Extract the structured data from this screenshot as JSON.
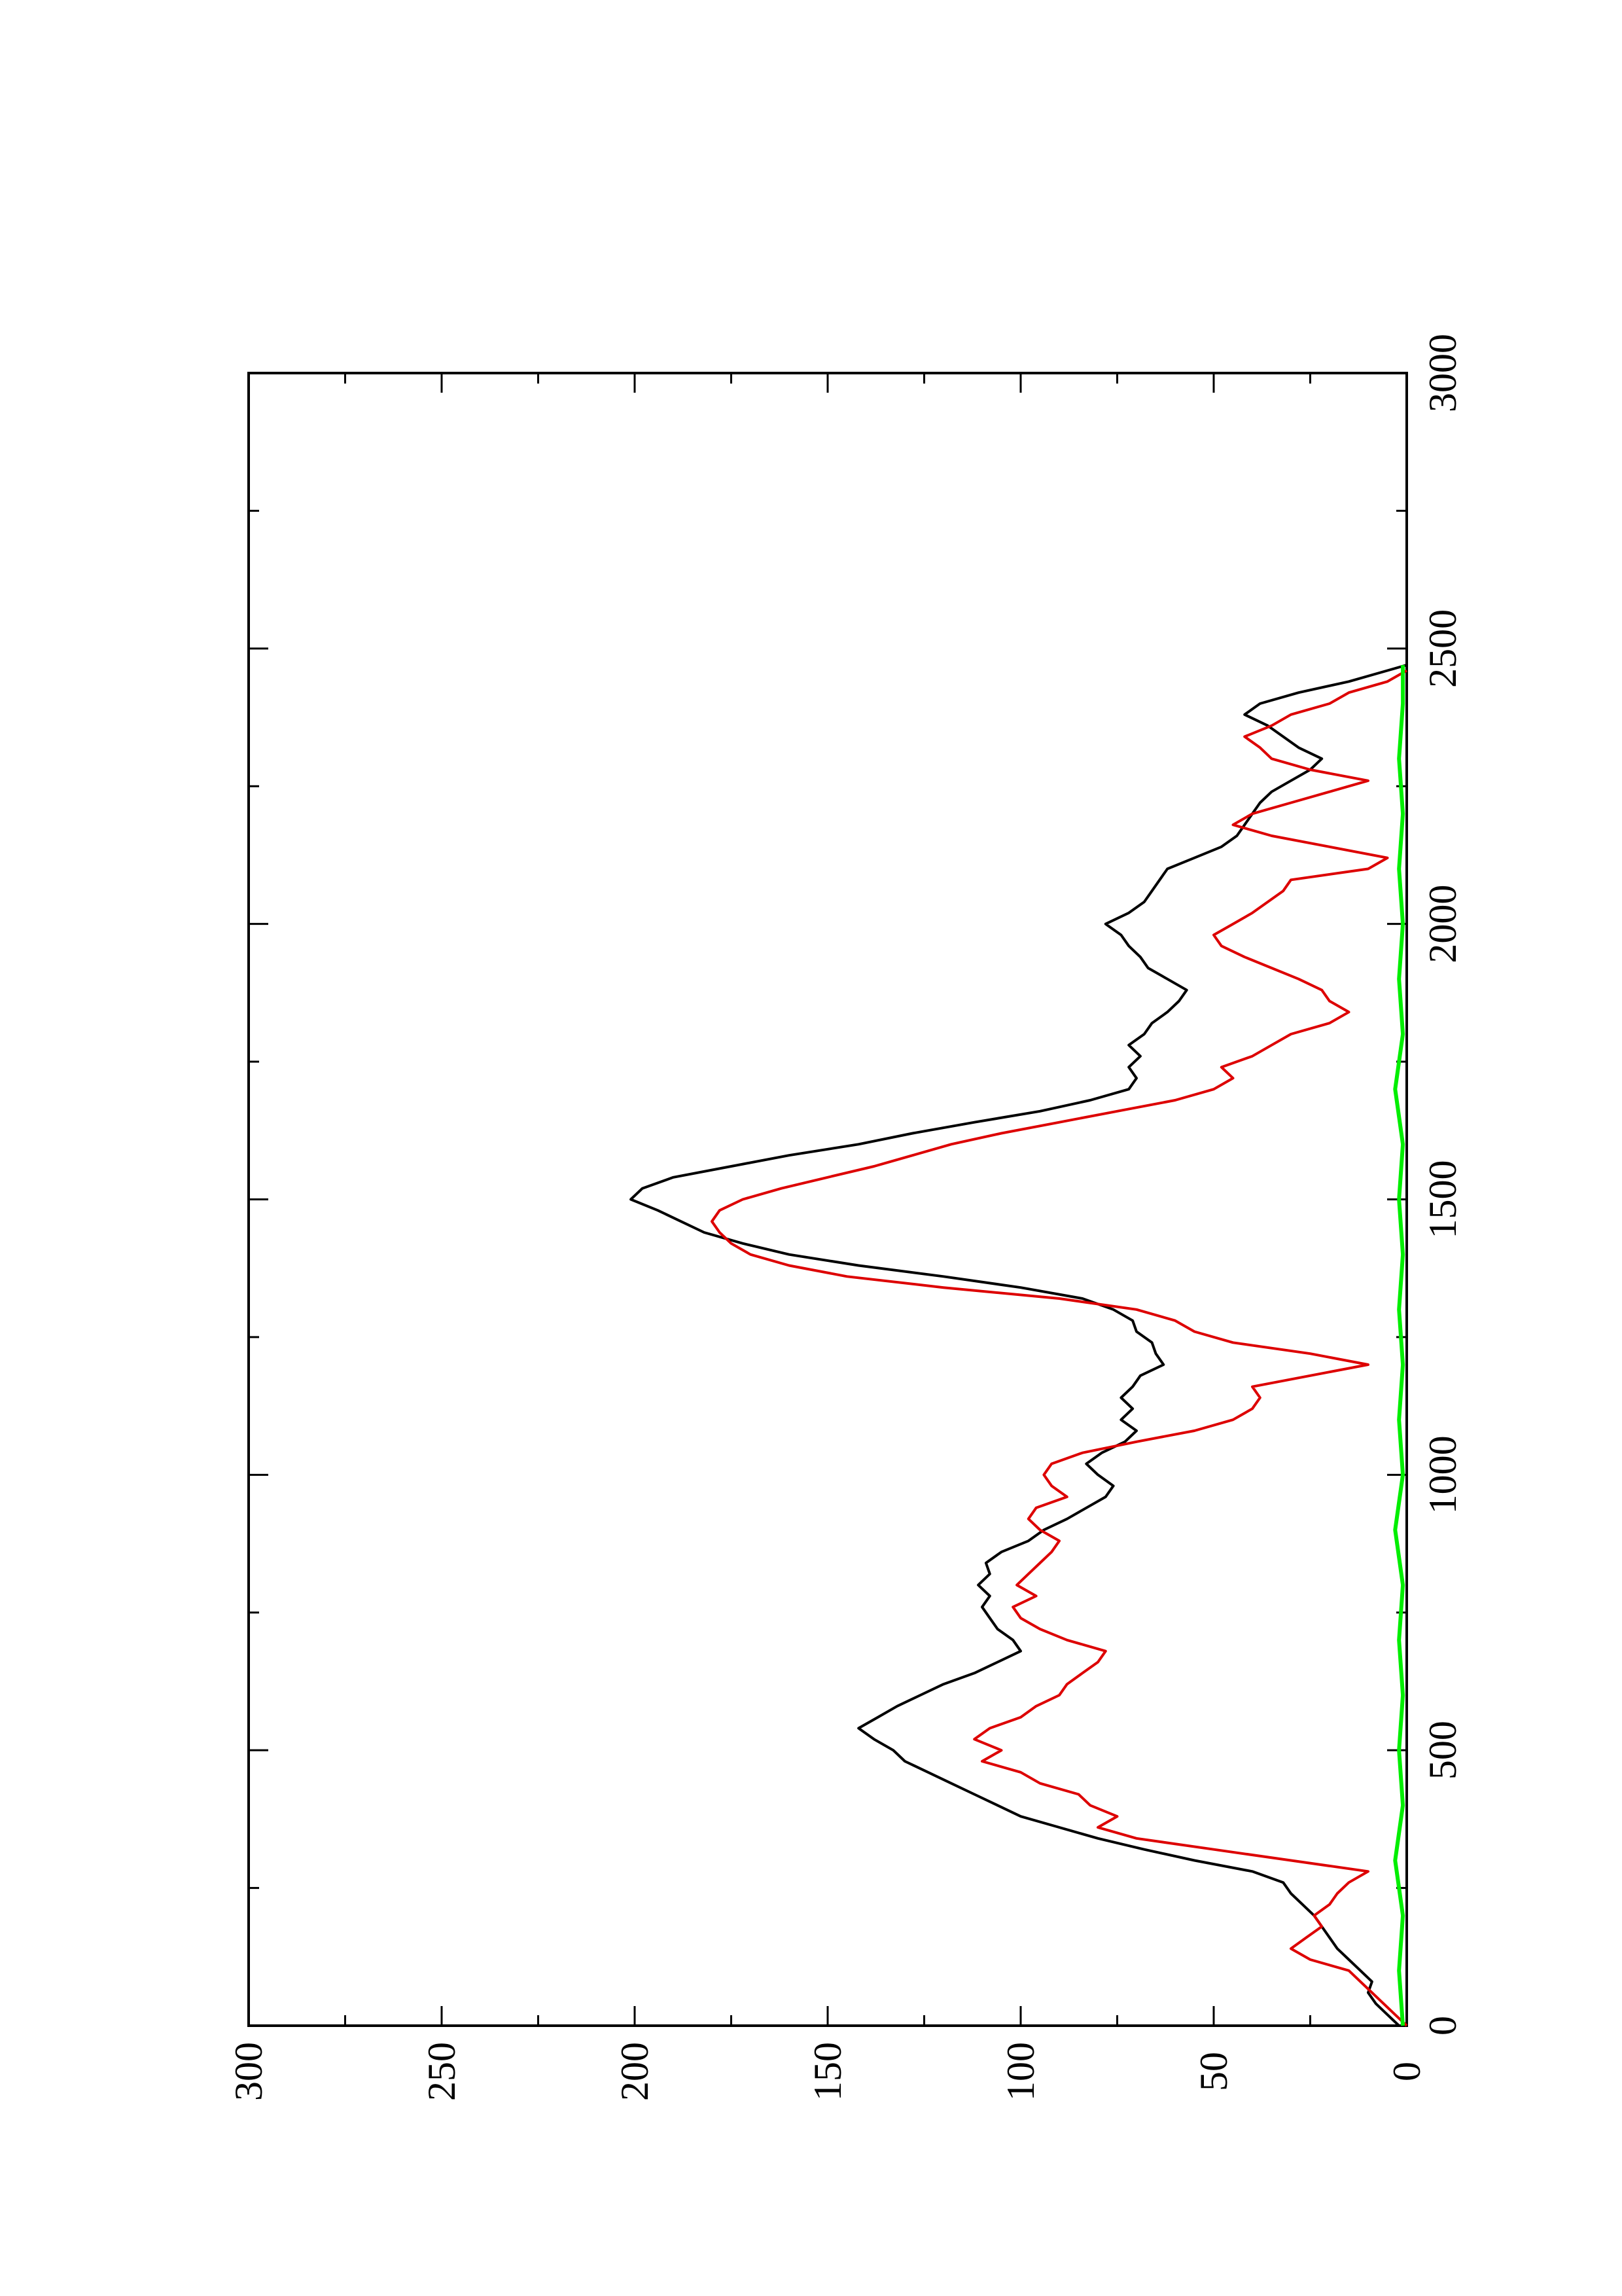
{
  "chart_data": {
    "type": "line",
    "title": "",
    "xlabel": "",
    "ylabel": "",
    "orientation": "rotated 90 degrees counter-clockwise",
    "xlim": [
      0,
      3000
    ],
    "ylim": [
      0,
      300
    ],
    "x_ticks": [
      0,
      500,
      1000,
      1500,
      2000,
      2500,
      3000
    ],
    "x_tick_labels": [
      "0",
      "500",
      "1000",
      "1500",
      "2000",
      "2500",
      "3000"
    ],
    "y_ticks": [
      0,
      50,
      100,
      150,
      200,
      250,
      300
    ],
    "y_tick_labels": [
      "0",
      "50",
      "100",
      "150",
      "200",
      "250",
      "300"
    ],
    "grid": false,
    "legend": "none",
    "series": [
      {
        "color": "#000000",
        "points": [
          [
            0,
            2
          ],
          [
            20,
            5
          ],
          [
            40,
            8
          ],
          [
            60,
            10
          ],
          [
            80,
            9
          ],
          [
            100,
            12
          ],
          [
            120,
            15
          ],
          [
            140,
            18
          ],
          [
            160,
            20
          ],
          [
            180,
            22
          ],
          [
            200,
            24
          ],
          [
            220,
            27
          ],
          [
            240,
            30
          ],
          [
            260,
            32
          ],
          [
            280,
            40
          ],
          [
            300,
            55
          ],
          [
            320,
            68
          ],
          [
            340,
            80
          ],
          [
            360,
            90
          ],
          [
            380,
            100
          ],
          [
            400,
            106
          ],
          [
            420,
            112
          ],
          [
            440,
            118
          ],
          [
            460,
            124
          ],
          [
            480,
            130
          ],
          [
            500,
            133
          ],
          [
            520,
            138
          ],
          [
            540,
            142
          ],
          [
            560,
            137
          ],
          [
            580,
            132
          ],
          [
            600,
            126
          ],
          [
            620,
            120
          ],
          [
            640,
            112
          ],
          [
            660,
            106
          ],
          [
            680,
            100
          ],
          [
            700,
            102
          ],
          [
            720,
            106
          ],
          [
            740,
            108
          ],
          [
            760,
            110
          ],
          [
            780,
            108
          ],
          [
            800,
            111
          ],
          [
            820,
            108
          ],
          [
            840,
            109
          ],
          [
            860,
            105
          ],
          [
            880,
            98
          ],
          [
            900,
            94
          ],
          [
            920,
            88
          ],
          [
            940,
            83
          ],
          [
            960,
            78
          ],
          [
            980,
            76
          ],
          [
            1000,
            80
          ],
          [
            1020,
            83
          ],
          [
            1040,
            79
          ],
          [
            1060,
            73
          ],
          [
            1080,
            70
          ],
          [
            1100,
            74
          ],
          [
            1120,
            71
          ],
          [
            1140,
            74
          ],
          [
            1160,
            71
          ],
          [
            1180,
            69
          ],
          [
            1200,
            63
          ],
          [
            1220,
            65
          ],
          [
            1240,
            66
          ],
          [
            1260,
            70
          ],
          [
            1280,
            71
          ],
          [
            1300,
            76
          ],
          [
            1320,
            84
          ],
          [
            1340,
            100
          ],
          [
            1360,
            120
          ],
          [
            1380,
            142
          ],
          [
            1400,
            160
          ],
          [
            1420,
            172
          ],
          [
            1440,
            182
          ],
          [
            1460,
            188
          ],
          [
            1480,
            194
          ],
          [
            1500,
            201
          ],
          [
            1520,
            198
          ],
          [
            1540,
            190
          ],
          [
            1560,
            175
          ],
          [
            1580,
            160
          ],
          [
            1600,
            142
          ],
          [
            1620,
            128
          ],
          [
            1640,
            112
          ],
          [
            1660,
            95
          ],
          [
            1680,
            82
          ],
          [
            1700,
            72
          ],
          [
            1720,
            70
          ],
          [
            1740,
            72
          ],
          [
            1760,
            69
          ],
          [
            1780,
            72
          ],
          [
            1800,
            68
          ],
          [
            1820,
            66
          ],
          [
            1840,
            62
          ],
          [
            1860,
            59
          ],
          [
            1880,
            57
          ],
          [
            1900,
            62
          ],
          [
            1920,
            67
          ],
          [
            1940,
            69
          ],
          [
            1960,
            72
          ],
          [
            1980,
            74
          ],
          [
            2000,
            78
          ],
          [
            2020,
            72
          ],
          [
            2040,
            68
          ],
          [
            2060,
            66
          ],
          [
            2080,
            64
          ],
          [
            2100,
            62
          ],
          [
            2120,
            55
          ],
          [
            2140,
            48
          ],
          [
            2160,
            44
          ],
          [
            2180,
            42
          ],
          [
            2200,
            40
          ],
          [
            2220,
            38
          ],
          [
            2240,
            35
          ],
          [
            2260,
            30
          ],
          [
            2280,
            25
          ],
          [
            2300,
            22
          ],
          [
            2320,
            28
          ],
          [
            2340,
            32
          ],
          [
            2360,
            36
          ],
          [
            2380,
            42
          ],
          [
            2400,
            38
          ],
          [
            2420,
            28
          ],
          [
            2440,
            15
          ],
          [
            2460,
            5
          ],
          [
            2470,
            0
          ]
        ]
      },
      {
        "color": "#dd0000",
        "points": [
          [
            0,
            0
          ],
          [
            20,
            3
          ],
          [
            40,
            6
          ],
          [
            60,
            9
          ],
          [
            80,
            12
          ],
          [
            100,
            15
          ],
          [
            120,
            25
          ],
          [
            140,
            30
          ],
          [
            160,
            26
          ],
          [
            180,
            22
          ],
          [
            200,
            24
          ],
          [
            220,
            20
          ],
          [
            240,
            18
          ],
          [
            260,
            15
          ],
          [
            280,
            10
          ],
          [
            300,
            30
          ],
          [
            320,
            50
          ],
          [
            340,
            70
          ],
          [
            360,
            80
          ],
          [
            380,
            75
          ],
          [
            400,
            82
          ],
          [
            420,
            85
          ],
          [
            440,
            95
          ],
          [
            460,
            100
          ],
          [
            480,
            110
          ],
          [
            500,
            105
          ],
          [
            520,
            112
          ],
          [
            540,
            108
          ],
          [
            560,
            100
          ],
          [
            580,
            96
          ],
          [
            600,
            90
          ],
          [
            620,
            88
          ],
          [
            640,
            84
          ],
          [
            660,
            80
          ],
          [
            680,
            78
          ],
          [
            700,
            88
          ],
          [
            720,
            95
          ],
          [
            740,
            100
          ],
          [
            760,
            102
          ],
          [
            780,
            96
          ],
          [
            800,
            101
          ],
          [
            820,
            98
          ],
          [
            840,
            95
          ],
          [
            860,
            92
          ],
          [
            880,
            90
          ],
          [
            900,
            95
          ],
          [
            920,
            98
          ],
          [
            940,
            96
          ],
          [
            960,
            88
          ],
          [
            980,
            92
          ],
          [
            1000,
            94
          ],
          [
            1020,
            92
          ],
          [
            1040,
            84
          ],
          [
            1060,
            70
          ],
          [
            1080,
            55
          ],
          [
            1100,
            45
          ],
          [
            1120,
            40
          ],
          [
            1140,
            38
          ],
          [
            1160,
            40
          ],
          [
            1180,
            25
          ],
          [
            1200,
            10
          ],
          [
            1220,
            25
          ],
          [
            1240,
            45
          ],
          [
            1260,
            55
          ],
          [
            1280,
            60
          ],
          [
            1300,
            70
          ],
          [
            1320,
            90
          ],
          [
            1340,
            120
          ],
          [
            1360,
            145
          ],
          [
            1380,
            160
          ],
          [
            1400,
            170
          ],
          [
            1420,
            175
          ],
          [
            1440,
            178
          ],
          [
            1460,
            180
          ],
          [
            1480,
            178
          ],
          [
            1500,
            172
          ],
          [
            1520,
            162
          ],
          [
            1540,
            150
          ],
          [
            1560,
            138
          ],
          [
            1580,
            128
          ],
          [
            1600,
            118
          ],
          [
            1620,
            105
          ],
          [
            1640,
            90
          ],
          [
            1660,
            75
          ],
          [
            1680,
            60
          ],
          [
            1700,
            50
          ],
          [
            1720,
            45
          ],
          [
            1740,
            48
          ],
          [
            1760,
            40
          ],
          [
            1780,
            35
          ],
          [
            1800,
            30
          ],
          [
            1820,
            20
          ],
          [
            1840,
            15
          ],
          [
            1860,
            20
          ],
          [
            1880,
            22
          ],
          [
            1900,
            28
          ],
          [
            1920,
            35
          ],
          [
            1940,
            42
          ],
          [
            1960,
            48
          ],
          [
            1980,
            50
          ],
          [
            2000,
            45
          ],
          [
            2020,
            40
          ],
          [
            2040,
            36
          ],
          [
            2060,
            32
          ],
          [
            2080,
            30
          ],
          [
            2100,
            10
          ],
          [
            2120,
            5
          ],
          [
            2140,
            20
          ],
          [
            2160,
            35
          ],
          [
            2180,
            45
          ],
          [
            2200,
            40
          ],
          [
            2220,
            30
          ],
          [
            2240,
            20
          ],
          [
            2260,
            10
          ],
          [
            2280,
            25
          ],
          [
            2300,
            35
          ],
          [
            2320,
            38
          ],
          [
            2340,
            42
          ],
          [
            2360,
            35
          ],
          [
            2380,
            30
          ],
          [
            2400,
            20
          ],
          [
            2420,
            15
          ],
          [
            2440,
            5
          ],
          [
            2460,
            0
          ]
        ]
      },
      {
        "color": "#00ee00",
        "points": [
          [
            0,
            1
          ],
          [
            100,
            2
          ],
          [
            200,
            1
          ],
          [
            300,
            3
          ],
          [
            400,
            1
          ],
          [
            500,
            2
          ],
          [
            600,
            1
          ],
          [
            700,
            2
          ],
          [
            800,
            1
          ],
          [
            900,
            3
          ],
          [
            1000,
            1
          ],
          [
            1100,
            2
          ],
          [
            1200,
            1
          ],
          [
            1300,
            2
          ],
          [
            1400,
            1
          ],
          [
            1500,
            2
          ],
          [
            1600,
            1
          ],
          [
            1700,
            3
          ],
          [
            1800,
            1
          ],
          [
            1900,
            2
          ],
          [
            2000,
            1
          ],
          [
            2100,
            2
          ],
          [
            2200,
            1
          ],
          [
            2300,
            2
          ],
          [
            2400,
            1
          ],
          [
            2470,
            1
          ]
        ]
      }
    ]
  }
}
